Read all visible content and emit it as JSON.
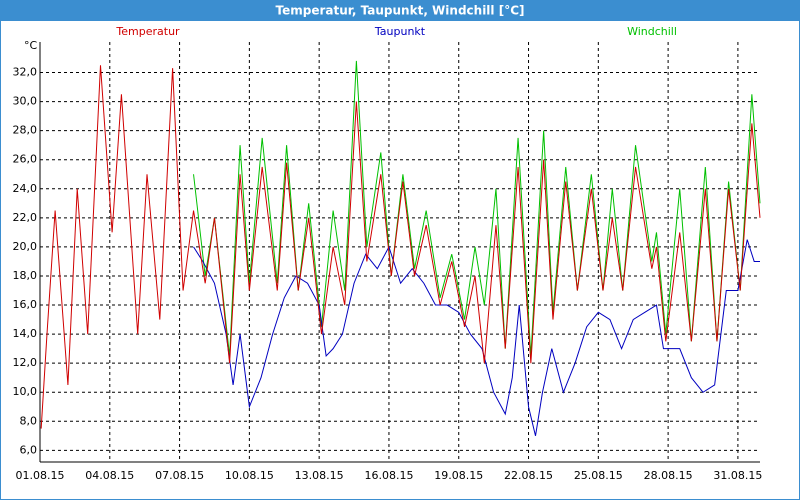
{
  "chart_data": {
    "type": "line",
    "title": "Temperatur, Taupunkt, Windchill [°C]",
    "ylabel": "°C",
    "xlim": [
      1,
      31.95
    ],
    "ylim": [
      5.2,
      34.1
    ],
    "xticks": [
      {
        "value": 1,
        "label": "01.08.15"
      },
      {
        "value": 4,
        "label": "04.08.15"
      },
      {
        "value": 7,
        "label": "07.08.15"
      },
      {
        "value": 10,
        "label": "10.08.15"
      },
      {
        "value": 13,
        "label": "13.08.15"
      },
      {
        "value": 16,
        "label": "16.08.15"
      },
      {
        "value": 19,
        "label": "19.08.15"
      },
      {
        "value": 22,
        "label": "22.08.15"
      },
      {
        "value": 25,
        "label": "25.08.15"
      },
      {
        "value": 28,
        "label": "28.08.15"
      },
      {
        "value": 31,
        "label": "31.08.15"
      }
    ],
    "yticks": [
      {
        "value": 6,
        "label": "6,0"
      },
      {
        "value": 8,
        "label": "8,0"
      },
      {
        "value": 10,
        "label": "10,0"
      },
      {
        "value": 12,
        "label": "12,0"
      },
      {
        "value": 14,
        "label": "14,0"
      },
      {
        "value": 16,
        "label": "16,0"
      },
      {
        "value": 18,
        "label": "18,0"
      },
      {
        "value": 20,
        "label": "20,0"
      },
      {
        "value": 22,
        "label": "22,0"
      },
      {
        "value": 24,
        "label": "24,0"
      },
      {
        "value": 26,
        "label": "26,0"
      },
      {
        "value": 28,
        "label": "28,0"
      },
      {
        "value": 30,
        "label": "30,0"
      },
      {
        "value": 32,
        "label": "32,0"
      }
    ],
    "grid": true,
    "series": [
      {
        "name": "Temperatur",
        "color": "#d00000",
        "x": [
          1.05,
          1.3,
          1.65,
          2.2,
          2.6,
          3.05,
          3.6,
          4.1,
          4.5,
          5.2,
          5.6,
          6.15,
          6.7,
          7.15,
          7.6,
          8.1,
          8.5,
          9.15,
          9.6,
          10.0,
          10.55,
          11.2,
          11.6,
          12.1,
          12.55,
          13.1,
          13.6,
          14.1,
          14.6,
          15.05,
          15.65,
          16.1,
          16.6,
          17.1,
          17.6,
          18.2,
          18.7,
          19.25,
          19.7,
          20.1,
          20.6,
          21.0,
          21.55,
          22.1,
          22.65,
          23.05,
          23.6,
          24.1,
          24.7,
          25.2,
          25.6,
          26.05,
          26.6,
          27.3,
          27.5,
          27.9,
          28.5,
          29.0,
          29.6,
          30.1,
          30.6,
          31.1,
          31.6,
          31.95
        ],
        "values": [
          7.5,
          14,
          22.5,
          10.5,
          24,
          14,
          32.5,
          21,
          30.5,
          14,
          25,
          15,
          32.3,
          17,
          22.5,
          17.5,
          22,
          12,
          25,
          17,
          25.5,
          17,
          25.8,
          17,
          22,
          14,
          20,
          16,
          30,
          19,
          25,
          18,
          24.5,
          18,
          21.5,
          16,
          19,
          14.5,
          18,
          12,
          21.5,
          13,
          25.5,
          12,
          26,
          15,
          24.5,
          17,
          24,
          17,
          22,
          17,
          25.5,
          18.5,
          20,
          13.5,
          21,
          13.5,
          24,
          13.5,
          24,
          17,
          28.5,
          22
        ]
      },
      {
        "name": "Taupunkt",
        "color": "#0000c0",
        "x": [
          7.6,
          8.0,
          8.5,
          9.0,
          9.3,
          9.6,
          10.0,
          10.5,
          11.0,
          11.5,
          12.0,
          12.5,
          13.0,
          13.3,
          13.6,
          14.0,
          14.5,
          15.0,
          15.5,
          16.0,
          16.5,
          17.0,
          17.5,
          18.0,
          18.5,
          19.0,
          19.5,
          20.0,
          20.5,
          21.0,
          21.3,
          21.6,
          22.0,
          22.3,
          22.6,
          23.0,
          23.5,
          24.0,
          24.5,
          25.0,
          25.5,
          26.0,
          26.5,
          27.0,
          27.5,
          27.8,
          28.0,
          28.5,
          29.0,
          29.5,
          30.0,
          30.5,
          31.0,
          31.4,
          31.7,
          31.95
        ],
        "values": [
          20,
          19,
          17.5,
          14,
          10.5,
          14,
          9,
          11,
          14,
          16.5,
          18,
          17.5,
          16,
          12.5,
          13,
          14,
          17.5,
          19.5,
          18.5,
          20,
          17.5,
          18.5,
          17.5,
          16,
          16,
          15.5,
          14,
          13,
          10,
          8.5,
          11,
          16,
          9,
          7,
          10,
          13,
          10,
          12,
          14.5,
          15.5,
          15,
          13,
          15,
          15.5,
          16,
          13,
          13,
          13,
          11,
          10,
          10.5,
          17,
          17,
          20.5,
          19,
          19
        ]
      },
      {
        "name": "Windchill",
        "color": "#00c000",
        "x": [
          7.6,
          8.1,
          8.5,
          9.15,
          9.6,
          10.0,
          10.55,
          11.2,
          11.6,
          12.1,
          12.55,
          13.1,
          13.6,
          14.1,
          14.6,
          15.05,
          15.65,
          16.1,
          16.6,
          17.1,
          17.6,
          18.2,
          18.7,
          19.25,
          19.7,
          20.1,
          20.6,
          21.0,
          21.55,
          22.1,
          22.65,
          23.05,
          23.6,
          24.1,
          24.7,
          25.2,
          25.6,
          26.05,
          26.6,
          27.3,
          27.5,
          27.9,
          28.5,
          29.0,
          29.6,
          30.1,
          30.6,
          31.1,
          31.6,
          31.95
        ],
        "values": [
          25,
          18,
          22,
          12.5,
          27,
          17.5,
          27.5,
          17.5,
          27,
          17,
          23,
          14.5,
          22.5,
          17,
          32.8,
          20,
          26.5,
          18,
          25,
          18.5,
          22.5,
          16.5,
          19.5,
          15,
          20,
          16,
          24,
          13,
          27.5,
          12.5,
          28,
          15.5,
          25.5,
          17,
          25,
          17,
          24,
          17,
          27,
          19,
          21,
          14,
          24,
          13.5,
          25.5,
          13.5,
          24.5,
          17,
          30.5,
          23
        ]
      }
    ]
  }
}
